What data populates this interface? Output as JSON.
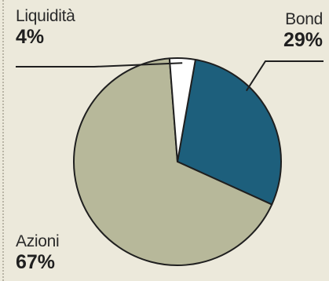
{
  "chart_data": {
    "type": "pie",
    "title": "",
    "slices": [
      {
        "label": "Bond",
        "value_label": "29%",
        "value": 29,
        "color": "#1d5f7c"
      },
      {
        "label": "Azioni",
        "value_label": "67%",
        "value": 67,
        "color": "#b7b89a"
      },
      {
        "label": "Liquidità",
        "value_label": "4%",
        "value": 4,
        "color": "#ffffff"
      }
    ],
    "stroke_color": "#1f1f1f",
    "legend": "none"
  }
}
